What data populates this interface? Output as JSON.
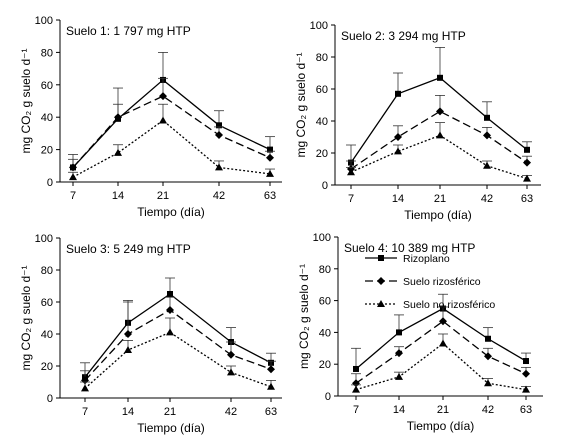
{
  "chart_data": [
    {
      "type": "line",
      "title": "Suelo 1: 1 797 mg HTP",
      "xlabel": "Tiempo (día)",
      "ylabel": "mg CO₂ g suelo d⁻¹",
      "categories": [
        "7",
        "14",
        "21",
        "42",
        "63"
      ],
      "ylim": [
        0,
        100
      ],
      "yticks": [
        0,
        20,
        40,
        60,
        80,
        100
      ],
      "series": [
        {
          "name": "Rizoplano",
          "values": [
            9,
            39,
            63,
            35,
            20
          ],
          "err": [
            8,
            19,
            17,
            9,
            8
          ]
        },
        {
          "name": "Suelo rizosférico",
          "values": [
            9,
            40,
            53,
            29,
            15
          ],
          "err": [
            5,
            8,
            11,
            5,
            4
          ]
        },
        {
          "name": "Suelo no rizosférico",
          "values": [
            3,
            18,
            38,
            9,
            5
          ],
          "err": [
            3,
            5,
            10,
            4,
            3
          ]
        }
      ]
    },
    {
      "type": "line",
      "title": "Suelo 2: 3 294 mg HTP",
      "xlabel": "Tiempo (día)",
      "ylabel": "mg CO₂ g suelo d⁻¹",
      "categories": [
        "7",
        "14",
        "21",
        "42",
        "63"
      ],
      "ylim": [
        0,
        100
      ],
      "yticks": [
        0,
        20,
        40,
        60,
        80,
        100
      ],
      "series": [
        {
          "name": "Rizoplano",
          "values": [
            14,
            57,
            67,
            42,
            22
          ],
          "err": [
            11,
            13,
            19,
            10,
            5
          ]
        },
        {
          "name": "Suelo rizosférico",
          "values": [
            10,
            30,
            46,
            31,
            14
          ],
          "err": [
            5,
            7,
            10,
            5,
            4
          ]
        },
        {
          "name": "Suelo no rizosférico",
          "values": [
            8,
            21,
            31,
            12,
            4
          ],
          "err": [
            3,
            4,
            8,
            3,
            2
          ]
        }
      ]
    },
    {
      "type": "line",
      "title": "Suelo 3: 5 249 mg HTP",
      "xlabel": "Tiempo (día)",
      "ylabel": "mg CO₂ g suelo d⁻¹",
      "categories": [
        "7",
        "14",
        "21",
        "42",
        "63"
      ],
      "ylim": [
        0,
        100
      ],
      "yticks": [
        0,
        20,
        40,
        60,
        80,
        100
      ],
      "series": [
        {
          "name": "Rizoplano",
          "values": [
            13,
            47,
            65,
            35,
            22
          ],
          "err": [
            9,
            14,
            10,
            9,
            6
          ]
        },
        {
          "name": "Suelo rizosférico",
          "values": [
            11,
            40,
            55,
            27,
            18
          ],
          "err": [
            6,
            20,
            8,
            8,
            5
          ]
        },
        {
          "name": "Suelo no rizosférico",
          "values": [
            6,
            30,
            41,
            16,
            7
          ],
          "err": [
            4,
            6,
            9,
            4,
            4
          ]
        }
      ]
    },
    {
      "type": "line",
      "title": "Suelo 4: 10 389 mg HTP",
      "xlabel": "Tiempo (día)",
      "ylabel": "mg CO₂ g suelo d⁻¹",
      "categories": [
        "7",
        "14",
        "21",
        "42",
        "63"
      ],
      "ylim": [
        0,
        100
      ],
      "yticks": [
        0,
        20,
        40,
        60,
        80,
        100
      ],
      "legend": "top-right",
      "series": [
        {
          "name": "Rizoplano",
          "values": [
            17,
            40,
            55,
            36,
            22
          ],
          "err": [
            13,
            11,
            9,
            7,
            5
          ]
        },
        {
          "name": "Suelo rizosférico",
          "values": [
            8,
            27,
            47,
            25,
            14
          ],
          "err": [
            6,
            4,
            9,
            5,
            4
          ]
        },
        {
          "name": "Suelo no rizosférico",
          "values": [
            4,
            12,
            33,
            8,
            4
          ],
          "err": [
            3,
            3,
            6,
            3,
            2
          ]
        }
      ]
    }
  ]
}
